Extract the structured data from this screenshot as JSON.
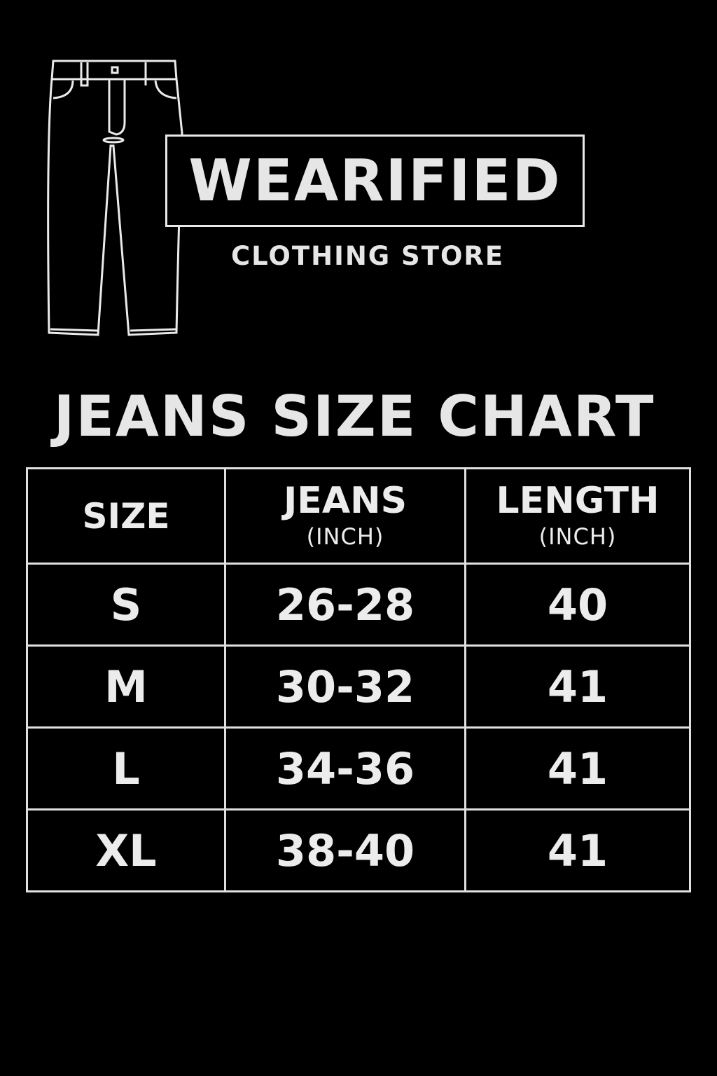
{
  "brand": {
    "name": "WEARIFIED",
    "tagline": "CLOTHING STORE",
    "icon": "jeans-outline-icon"
  },
  "title": "JEANS SIZE CHART",
  "table": {
    "headers": [
      {
        "main": "SIZE",
        "sub": ""
      },
      {
        "main": "JEANS",
        "sub": "(INCH)"
      },
      {
        "main": "LENGTH",
        "sub": "(INCH)"
      }
    ],
    "rows": [
      [
        "S",
        "26-28",
        "40"
      ],
      [
        "M",
        "30-32",
        "41"
      ],
      [
        "L",
        "34-36",
        "41"
      ],
      [
        "XL",
        "38-40",
        "41"
      ]
    ]
  },
  "colors": {
    "background": "#000000",
    "foreground": "#e6e6e6"
  }
}
